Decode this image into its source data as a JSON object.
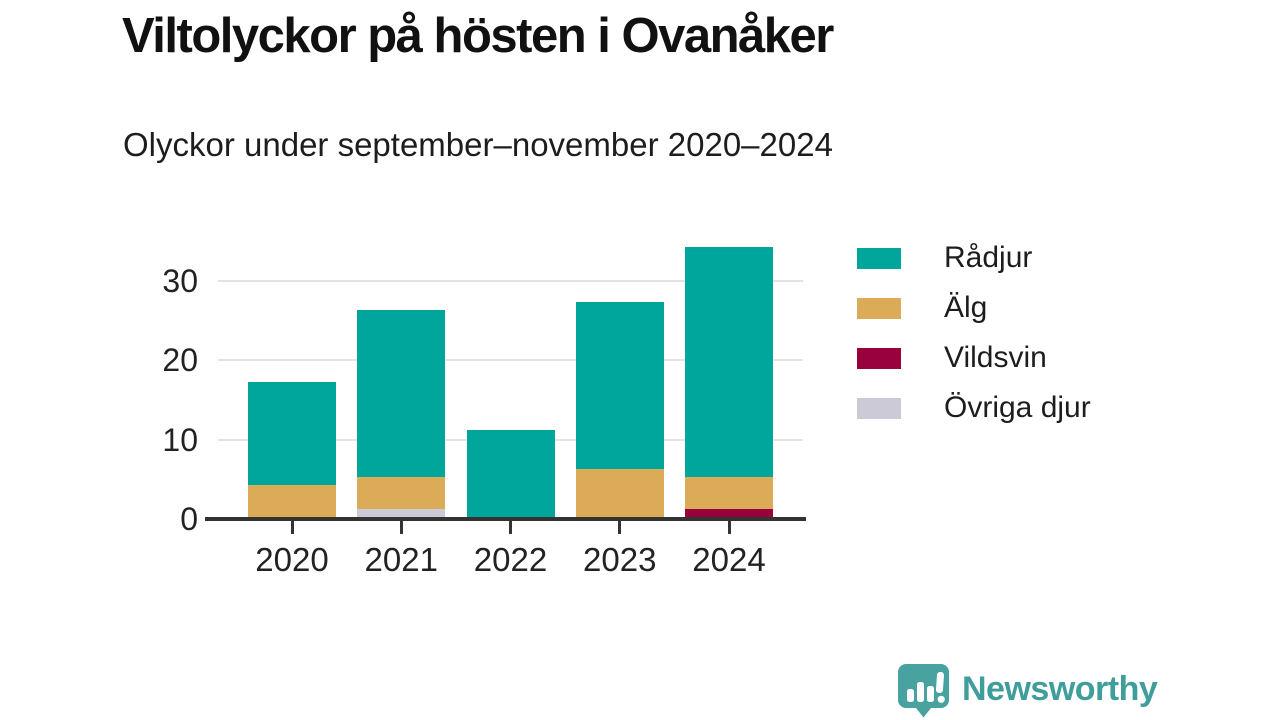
{
  "header": {
    "title": "Viltolyckor på hösten i Ovanåker",
    "subtitle": "Olyckor under september–november 2020–2024"
  },
  "chart_data": {
    "type": "bar",
    "stacked": true,
    "title": "Viltolyckor på hösten i Ovanåker",
    "subtitle": "Olyckor under september–november 2020–2024",
    "categories": [
      "2020",
      "2021",
      "2022",
      "2023",
      "2024"
    ],
    "series": [
      {
        "name": "Rådjur",
        "color": "#00a69c",
        "values": [
          13,
          21,
          11,
          21,
          29
        ]
      },
      {
        "name": "Älg",
        "color": "#dcab58",
        "values": [
          4,
          4,
          0,
          6,
          4
        ]
      },
      {
        "name": "Vildsvin",
        "color": "#98013b",
        "values": [
          0,
          0,
          0,
          0,
          1
        ]
      },
      {
        "name": "Övriga djur",
        "color": "#cbcad6",
        "values": [
          0,
          1,
          0,
          0,
          0
        ]
      }
    ],
    "stack_order_bottom_up": [
      "Övriga djur",
      "Vildsvin",
      "Älg",
      "Rådjur"
    ],
    "y_axis": {
      "ticks": [
        0,
        10,
        20,
        30
      ],
      "max": 35
    },
    "grid": "horizontal",
    "legend_position": "right"
  },
  "footer": {
    "brand": "Newsworthy",
    "logo_icon": "speech-bubble-bar-chart-icon",
    "brand_color": "#3f9e9b"
  },
  "colors": {
    "background": "#ffffff",
    "axis": "#333333",
    "grid": "#e3e3e3",
    "title": "#111111",
    "text": "#1d1d1d",
    "logo_bubble": "#47a2a0"
  }
}
